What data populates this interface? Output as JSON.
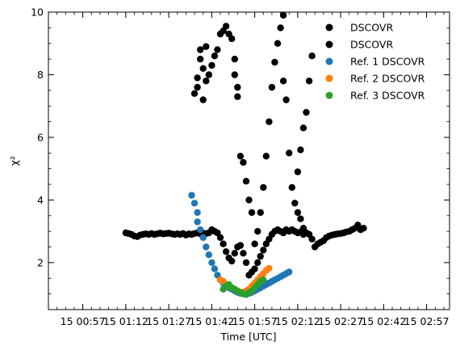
{
  "chart_data": {
    "type": "scatter",
    "xlabel": "Time [UTC]",
    "ylabel": "χ²",
    "xlim": [
      "00:45",
      "03:05"
    ],
    "ylim": [
      0.5,
      10
    ],
    "grid": false,
    "legend_position": "top-right",
    "x_ticks": [
      "15 00:57",
      "15 01:12",
      "15 01:27",
      "15 01:42",
      "15 01:57",
      "15 02:12",
      "15 02:27",
      "15 02:42",
      "15 02:57"
    ],
    "y_ticks": [
      2,
      4,
      6,
      8,
      10
    ],
    "series": [
      {
        "name": "DSCOVR",
        "color": "#000000",
        "points": [
          [
            "01:12",
            2.95
          ],
          [
            "01:13",
            2.93
          ],
          [
            "01:14",
            2.9
          ],
          [
            "01:15",
            2.85
          ],
          [
            "01:16",
            2.83
          ],
          [
            "01:17",
            2.88
          ],
          [
            "01:18",
            2.9
          ],
          [
            "01:19",
            2.92
          ],
          [
            "01:20",
            2.9
          ],
          [
            "01:21",
            2.93
          ],
          [
            "01:22",
            2.9
          ],
          [
            "01:23",
            2.92
          ],
          [
            "01:24",
            2.94
          ],
          [
            "01:25",
            2.92
          ],
          [
            "01:26",
            2.93
          ],
          [
            "01:27",
            2.94
          ],
          [
            "01:28",
            2.92
          ],
          [
            "01:29",
            2.9
          ],
          [
            "01:30",
            2.92
          ],
          [
            "01:31",
            2.9
          ],
          [
            "01:32",
            2.93
          ],
          [
            "01:33",
            2.88
          ],
          [
            "01:34",
            2.92
          ],
          [
            "01:35",
            2.9
          ],
          [
            "01:36",
            2.93
          ],
          [
            "01:37",
            2.95
          ],
          [
            "01:38",
            2.92
          ],
          [
            "01:39",
            2.94
          ],
          [
            "01:40",
            2.93
          ],
          [
            "01:41",
            2.95
          ],
          [
            "01:42",
            3.05
          ],
          [
            "01:43",
            3.0
          ],
          [
            "01:44",
            2.95
          ],
          [
            "01:45",
            2.8
          ],
          [
            "01:46",
            2.6
          ],
          [
            "01:47",
            2.35
          ],
          [
            "01:48",
            2.15
          ],
          [
            "01:49",
            2.05
          ],
          [
            "01:50",
            2.3
          ],
          [
            "01:51",
            2.5
          ],
          [
            "01:52",
            2.55
          ],
          [
            "01:53",
            2.3
          ],
          [
            "01:54",
            2.0
          ],
          [
            "01:55",
            1.6
          ],
          [
            "01:56",
            1.7
          ],
          [
            "01:57",
            1.8
          ],
          [
            "01:58",
            2.0
          ],
          [
            "01:59",
            2.2
          ],
          [
            "02:00",
            2.4
          ],
          [
            "02:01",
            2.6
          ],
          [
            "02:02",
            2.75
          ],
          [
            "02:03",
            2.9
          ],
          [
            "02:04",
            3.0
          ],
          [
            "02:05",
            3.05
          ],
          [
            "02:06",
            3.0
          ],
          [
            "02:07",
            2.95
          ],
          [
            "02:08",
            3.05
          ],
          [
            "02:09",
            3.0
          ],
          [
            "02:10",
            3.05
          ],
          [
            "02:11",
            3.0
          ],
          [
            "02:12",
            2.95
          ],
          [
            "02:13",
            2.98
          ],
          [
            "02:14",
            2.9
          ],
          [
            "02:15",
            2.95
          ],
          [
            "02:16",
            2.9
          ],
          [
            "02:17",
            2.75
          ],
          [
            "02:18",
            2.5
          ],
          [
            "02:19",
            2.6
          ],
          [
            "02:20",
            2.65
          ],
          [
            "02:21",
            2.7
          ],
          [
            "02:22",
            2.8
          ],
          [
            "02:23",
            2.85
          ],
          [
            "02:24",
            2.88
          ],
          [
            "02:25",
            2.9
          ],
          [
            "02:26",
            2.92
          ],
          [
            "02:27",
            2.93
          ],
          [
            "02:28",
            2.95
          ],
          [
            "02:29",
            2.98
          ],
          [
            "02:30",
            3.0
          ],
          [
            "02:31",
            3.05
          ],
          [
            "02:32",
            3.1
          ],
          [
            "02:33",
            3.2
          ],
          [
            "02:34",
            3.05
          ],
          [
            "02:35",
            3.1
          ]
        ]
      },
      {
        "name": "DSCOVR",
        "color": "#000000",
        "points": [
          [
            "01:36",
            7.4
          ],
          [
            "01:37",
            7.6
          ],
          [
            "01:37",
            7.9
          ],
          [
            "01:38",
            8.5
          ],
          [
            "01:38",
            8.8
          ],
          [
            "01:39",
            7.2
          ],
          [
            "01:39",
            8.2
          ],
          [
            "01:40",
            7.8
          ],
          [
            "01:40",
            8.9
          ],
          [
            "01:41",
            8.0
          ],
          [
            "01:42",
            8.3
          ],
          [
            "01:43",
            8.6
          ],
          [
            "01:44",
            8.8
          ],
          [
            "01:45",
            9.3
          ],
          [
            "01:46",
            9.4
          ],
          [
            "01:47",
            9.55
          ],
          [
            "01:48",
            9.3
          ],
          [
            "01:49",
            9.15
          ],
          [
            "01:50",
            8.5
          ],
          [
            "01:50",
            8.0
          ],
          [
            "01:51",
            7.6
          ],
          [
            "01:51",
            7.3
          ],
          [
            "01:52",
            5.4
          ],
          [
            "01:53",
            5.2
          ],
          [
            "01:54",
            4.6
          ],
          [
            "01:55",
            4.0
          ],
          [
            "01:56",
            3.6
          ],
          [
            "01:57",
            2.6
          ],
          [
            "01:58",
            3.0
          ],
          [
            "01:59",
            3.6
          ],
          [
            "02:00",
            4.4
          ],
          [
            "02:01",
            5.4
          ],
          [
            "02:02",
            6.5
          ],
          [
            "02:03",
            7.6
          ],
          [
            "02:04",
            8.4
          ],
          [
            "02:05",
            9.0
          ],
          [
            "02:06",
            9.5
          ],
          [
            "02:07",
            9.9
          ],
          [
            "02:07",
            7.8
          ],
          [
            "02:08",
            7.2
          ],
          [
            "02:09",
            5.5
          ],
          [
            "02:10",
            4.4
          ],
          [
            "02:11",
            3.9
          ],
          [
            "02:12",
            3.6
          ],
          [
            "02:13",
            3.4
          ],
          [
            "02:14",
            3.1
          ],
          [
            "02:12",
            4.9
          ],
          [
            "02:13",
            5.6
          ],
          [
            "02:14",
            6.3
          ],
          [
            "02:15",
            6.8
          ],
          [
            "02:16",
            7.8
          ],
          [
            "02:17",
            8.6
          ]
        ]
      },
      {
        "name": "Ref. 1 DSCOVR",
        "color": "#1f77b4",
        "points": [
          [
            "01:35",
            4.15
          ],
          [
            "01:36",
            3.9
          ],
          [
            "01:37",
            3.6
          ],
          [
            "01:37",
            3.3
          ],
          [
            "01:38",
            3.05
          ],
          [
            "01:39",
            2.8
          ],
          [
            "01:40",
            2.5
          ],
          [
            "01:41",
            2.25
          ],
          [
            "01:42",
            2.0
          ],
          [
            "01:43",
            1.8
          ],
          [
            "01:44",
            1.6
          ],
          [
            "01:45",
            1.45
          ],
          [
            "01:46",
            1.35
          ],
          [
            "01:47",
            1.28
          ],
          [
            "01:48",
            1.2
          ],
          [
            "01:49",
            1.15
          ],
          [
            "01:50",
            1.1
          ],
          [
            "01:51",
            1.05
          ],
          [
            "01:52",
            1.02
          ],
          [
            "01:53",
            1.0
          ],
          [
            "01:54",
            1.0
          ],
          [
            "01:55",
            1.02
          ],
          [
            "01:56",
            1.05
          ],
          [
            "01:57",
            1.1
          ],
          [
            "01:58",
            1.15
          ],
          [
            "01:59",
            1.2
          ],
          [
            "02:00",
            1.25
          ],
          [
            "02:01",
            1.3
          ],
          [
            "02:02",
            1.35
          ],
          [
            "02:03",
            1.4
          ],
          [
            "02:04",
            1.45
          ],
          [
            "02:05",
            1.5
          ],
          [
            "02:06",
            1.55
          ],
          [
            "02:07",
            1.6
          ],
          [
            "02:08",
            1.65
          ],
          [
            "02:09",
            1.7
          ]
        ]
      },
      {
        "name": "Ref. 2 DSCOVR",
        "color": "#ff7f0e",
        "points": [
          [
            "01:45",
            1.45
          ],
          [
            "01:46",
            1.4
          ],
          [
            "01:47",
            1.3
          ],
          [
            "01:48",
            1.25
          ],
          [
            "01:49",
            1.2
          ],
          [
            "01:50",
            1.15
          ],
          [
            "01:51",
            1.1
          ],
          [
            "01:52",
            1.05
          ],
          [
            "01:53",
            1.05
          ],
          [
            "01:54",
            1.1
          ],
          [
            "01:55",
            1.15
          ],
          [
            "01:56",
            1.25
          ],
          [
            "01:57",
            1.35
          ],
          [
            "01:58",
            1.45
          ],
          [
            "01:59",
            1.55
          ],
          [
            "02:00",
            1.65
          ],
          [
            "02:01",
            1.75
          ],
          [
            "02:02",
            1.82
          ]
        ]
      },
      {
        "name": "Ref. 3 DSCOVR",
        "color": "#2ca02c",
        "points": [
          [
            "01:46",
            1.15
          ],
          [
            "01:47",
            1.25
          ],
          [
            "01:48",
            1.3
          ],
          [
            "01:49",
            1.2
          ],
          [
            "01:50",
            1.15
          ],
          [
            "01:51",
            1.1
          ],
          [
            "01:52",
            1.05
          ],
          [
            "01:53",
            1.0
          ],
          [
            "01:54",
            0.98
          ],
          [
            "01:55",
            1.05
          ],
          [
            "01:56",
            1.1
          ],
          [
            "01:57",
            1.2
          ],
          [
            "01:58",
            1.3
          ],
          [
            "01:59",
            1.4
          ],
          [
            "02:00",
            1.45
          ]
        ]
      }
    ]
  }
}
